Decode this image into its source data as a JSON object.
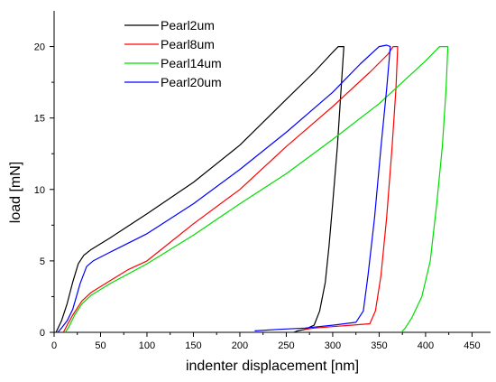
{
  "chart_data": {
    "type": "line",
    "title": "",
    "xlabel": "indenter displacement [nm]",
    "ylabel": "load [mN]",
    "xlim": [
      0,
      470
    ],
    "ylim": [
      0,
      22.5
    ],
    "xticks": [
      0,
      50,
      100,
      150,
      200,
      250,
      300,
      350,
      400,
      450
    ],
    "yticks": [
      0,
      5,
      10,
      15,
      20
    ],
    "grid": false,
    "legend_position": "top-left",
    "series": [
      {
        "name": "Pearl2um",
        "color": "#000000",
        "points": [
          [
            2,
            0
          ],
          [
            8,
            0.8
          ],
          [
            14,
            2.0
          ],
          [
            20,
            3.5
          ],
          [
            26,
            4.8
          ],
          [
            32,
            5.4
          ],
          [
            40,
            5.8
          ],
          [
            60,
            6.6
          ],
          [
            100,
            8.3
          ],
          [
            150,
            10.5
          ],
          [
            200,
            13.1
          ],
          [
            250,
            16.3
          ],
          [
            280,
            18.2
          ],
          [
            300,
            19.6
          ],
          [
            306,
            20.0
          ],
          [
            312,
            20.0
          ],
          [
            309,
            17.0
          ],
          [
            305,
            13.0
          ],
          [
            300,
            9.0
          ],
          [
            296,
            6.0
          ],
          [
            292,
            3.5
          ],
          [
            286,
            1.5
          ],
          [
            280,
            0.5
          ],
          [
            270,
            0.2
          ],
          [
            262,
            0.1
          ],
          [
            258,
            0
          ]
        ]
      },
      {
        "name": "Pearl8um",
        "color": "#ff0000",
        "points": [
          [
            10,
            0
          ],
          [
            14,
            0.5
          ],
          [
            20,
            1.2
          ],
          [
            30,
            2.2
          ],
          [
            40,
            2.8
          ],
          [
            60,
            3.6
          ],
          [
            80,
            4.4
          ],
          [
            100,
            5.0
          ],
          [
            150,
            7.6
          ],
          [
            200,
            10.0
          ],
          [
            250,
            13.0
          ],
          [
            300,
            15.8
          ],
          [
            340,
            18.2
          ],
          [
            360,
            19.5
          ],
          [
            365,
            20.0
          ],
          [
            370,
            20.0
          ],
          [
            368,
            17.0
          ],
          [
            364,
            13.0
          ],
          [
            358,
            8.0
          ],
          [
            352,
            4.0
          ],
          [
            346,
            1.5
          ],
          [
            340,
            0.6
          ],
          [
            320,
            0.5
          ],
          [
            300,
            0.4
          ],
          [
            280,
            0.3
          ],
          [
            270,
            0.2
          ]
        ]
      },
      {
        "name": "Pearl14um",
        "color": "#00dd00",
        "points": [
          [
            12,
            0
          ],
          [
            16,
            0.4
          ],
          [
            22,
            1.2
          ],
          [
            30,
            2.0
          ],
          [
            40,
            2.6
          ],
          [
            60,
            3.4
          ],
          [
            100,
            4.8
          ],
          [
            150,
            6.8
          ],
          [
            200,
            9.0
          ],
          [
            250,
            11.1
          ],
          [
            300,
            13.5
          ],
          [
            350,
            16.0
          ],
          [
            400,
            19.0
          ],
          [
            415,
            20.0
          ],
          [
            424,
            20.0
          ],
          [
            422,
            17.0
          ],
          [
            418,
            13.0
          ],
          [
            412,
            9.0
          ],
          [
            405,
            5.0
          ],
          [
            396,
            2.5
          ],
          [
            385,
            1.0
          ],
          [
            378,
            0.3
          ],
          [
            374,
            0
          ]
        ]
      },
      {
        "name": "Pearl20um",
        "color": "#0000ff",
        "points": [
          [
            4,
            0
          ],
          [
            8,
            0.3
          ],
          [
            14,
            0.8
          ],
          [
            20,
            1.6
          ],
          [
            28,
            3.4
          ],
          [
            35,
            4.6
          ],
          [
            42,
            5.0
          ],
          [
            60,
            5.6
          ],
          [
            100,
            6.9
          ],
          [
            150,
            9.0
          ],
          [
            200,
            11.4
          ],
          [
            250,
            14.0
          ],
          [
            300,
            16.8
          ],
          [
            330,
            18.8
          ],
          [
            350,
            20.0
          ],
          [
            358,
            20.1
          ],
          [
            362,
            20.0
          ],
          [
            358,
            17.0
          ],
          [
            352,
            13.0
          ],
          [
            345,
            8.0
          ],
          [
            338,
            4.0
          ],
          [
            333,
            1.5
          ],
          [
            325,
            0.7
          ],
          [
            300,
            0.5
          ],
          [
            270,
            0.3
          ],
          [
            240,
            0.2
          ],
          [
            216,
            0.1
          ]
        ]
      }
    ]
  }
}
